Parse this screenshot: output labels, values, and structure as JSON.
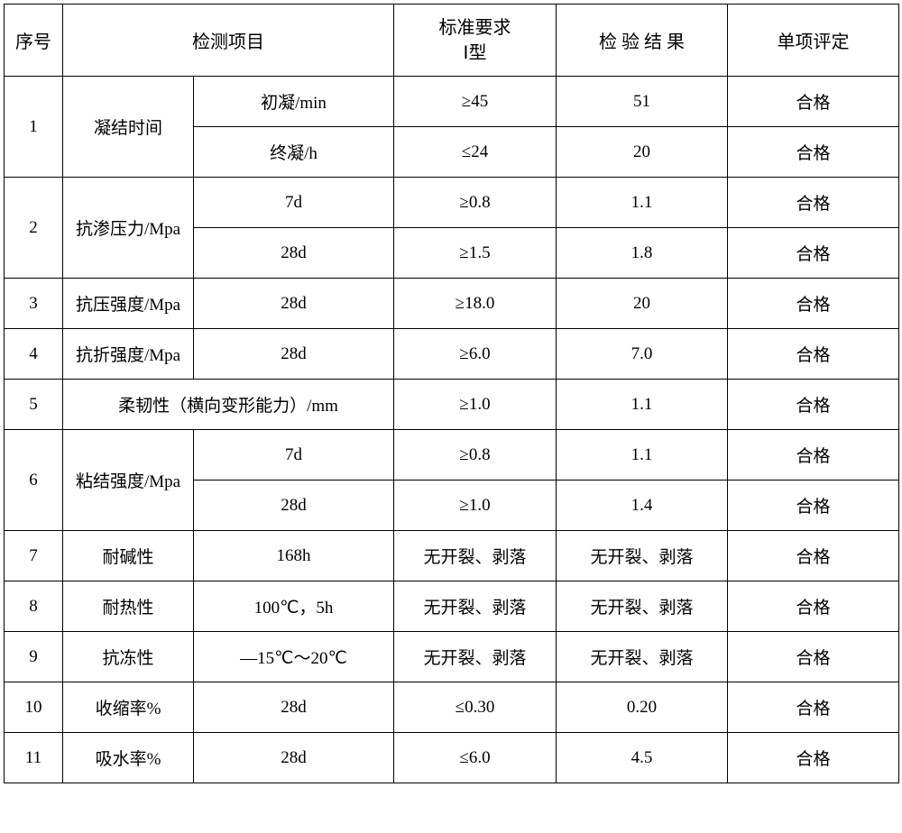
{
  "header": {
    "seq": "序号",
    "test_item": "检测项目",
    "standard_line1": "标准要求",
    "standard_line2": "Ⅰ型",
    "result": "检 验 结 果",
    "evaluation": "单项评定"
  },
  "rows": [
    {
      "seq": "1",
      "param": "凝结时间",
      "sub": [
        {
          "label": "初凝/min",
          "standard": "≥45",
          "result": "51",
          "eval": "合格"
        },
        {
          "label": "终凝/h",
          "standard": "≤24",
          "result": "20",
          "eval": "合格"
        }
      ]
    },
    {
      "seq": "2",
      "param": "抗渗压力/Mpa",
      "sub": [
        {
          "label": "7d",
          "standard": "≥0.8",
          "result": "1.1",
          "eval": "合格"
        },
        {
          "label": "28d",
          "standard": "≥1.5",
          "result": "1.8",
          "eval": "合格"
        }
      ]
    },
    {
      "seq": "3",
      "param": "抗压强度/Mpa",
      "sub": [
        {
          "label": "28d",
          "standard": "≥18.0",
          "result": "20",
          "eval": "合格"
        }
      ]
    },
    {
      "seq": "4",
      "param": "抗折强度/Mpa",
      "sub": [
        {
          "label": "28d",
          "standard": "≥6.0",
          "result": "7.0",
          "eval": "合格"
        }
      ]
    },
    {
      "seq": "5",
      "param_merged": "柔韧性（横向变形能力）/mm",
      "standard": "≥1.0",
      "result": "1.1",
      "eval": "合格"
    },
    {
      "seq": "6",
      "param": "粘结强度/Mpa",
      "sub": [
        {
          "label": "7d",
          "standard": "≥0.8",
          "result": "1.1",
          "eval": "合格"
        },
        {
          "label": "28d",
          "standard": "≥1.0",
          "result": "1.4",
          "eval": "合格"
        }
      ]
    },
    {
      "seq": "7",
      "param": "耐碱性",
      "sub": [
        {
          "label": "168h",
          "standard": "无开裂、剥落",
          "result": "无开裂、剥落",
          "eval": "合格"
        }
      ]
    },
    {
      "seq": "8",
      "param": "耐热性",
      "sub": [
        {
          "label": "100℃，5h",
          "standard": "无开裂、剥落",
          "result": "无开裂、剥落",
          "eval": "合格"
        }
      ]
    },
    {
      "seq": "9",
      "param": "抗冻性",
      "sub": [
        {
          "label": "—15℃～20℃",
          "standard": "无开裂、剥落",
          "result": "无开裂、剥落",
          "eval": "合格"
        }
      ]
    },
    {
      "seq": "10",
      "param": "收缩率%",
      "sub": [
        {
          "label": "28d",
          "standard": "≤0.30",
          "result": "0.20",
          "eval": "合格"
        }
      ]
    },
    {
      "seq": "11",
      "param": "吸水率%",
      "sub": [
        {
          "label": "28d",
          "standard": "≤6.0",
          "result": "4.5",
          "eval": "合格"
        }
      ]
    }
  ],
  "style": {
    "border_color": "#000000",
    "bg_color": "#ffffff",
    "text_color": "#000000",
    "header_fontsize": 20,
    "body_fontsize": 19,
    "header_row_height": 80,
    "data_row_height": 56
  }
}
